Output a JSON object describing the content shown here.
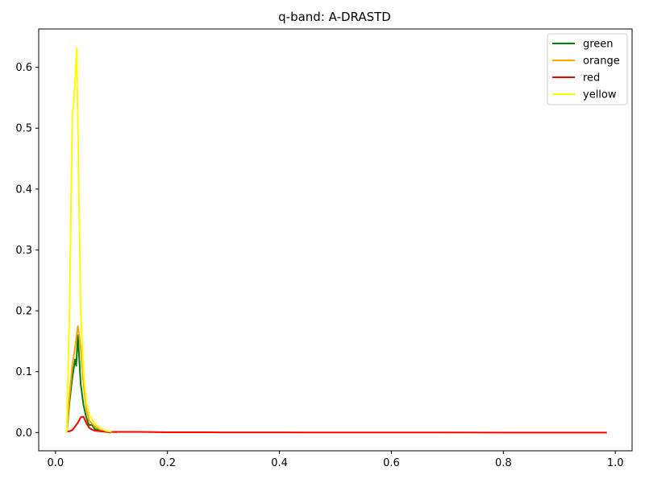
{
  "chart_data": {
    "type": "line",
    "title": "q-band: A-DRASTD",
    "xlabel": "",
    "ylabel": "",
    "xlim": [
      -0.03,
      1.03
    ],
    "ylim": [
      -0.03,
      0.663
    ],
    "xticks": [
      0.0,
      0.2,
      0.4,
      0.6,
      0.8,
      1.0
    ],
    "xtick_labels": [
      "0.0",
      "0.2",
      "0.4",
      "0.6",
      "0.8",
      "1.0"
    ],
    "yticks": [
      0.0,
      0.1,
      0.2,
      0.3,
      0.4,
      0.5,
      0.6
    ],
    "ytick_labels": [
      "0.0",
      "0.1",
      "0.2",
      "0.3",
      "0.4",
      "0.5",
      "0.6"
    ],
    "legend_position": "top-right",
    "grid": false,
    "series": [
      {
        "name": "green",
        "color": "#008000",
        "x": [
          0.02,
          0.025,
          0.03,
          0.035,
          0.037,
          0.04,
          0.045,
          0.05,
          0.055,
          0.06,
          0.065,
          0.07,
          0.08,
          0.09,
          0.1
        ],
        "y": [
          0.0,
          0.05,
          0.09,
          0.12,
          0.11,
          0.16,
          0.08,
          0.045,
          0.025,
          0.012,
          0.013,
          0.006,
          0.003,
          0.001,
          0.0
        ]
      },
      {
        "name": "orange",
        "color": "#ffa500",
        "x": [
          0.02,
          0.025,
          0.03,
          0.035,
          0.04,
          0.045,
          0.05,
          0.055,
          0.06,
          0.07,
          0.08,
          0.09,
          0.1,
          0.11
        ],
        "y": [
          0.0,
          0.06,
          0.11,
          0.14,
          0.175,
          0.14,
          0.08,
          0.04,
          0.02,
          0.01,
          0.005,
          0.002,
          0.001,
          0.0
        ]
      },
      {
        "name": "red",
        "color": "#ff0000",
        "x": [
          0.02,
          0.025,
          0.03,
          0.035,
          0.04,
          0.045,
          0.05,
          0.055,
          0.06,
          0.065,
          0.07,
          0.08,
          0.1,
          0.15,
          0.2,
          0.3,
          0.4,
          0.5,
          0.6,
          0.7,
          0.8,
          0.9,
          0.985
        ],
        "y": [
          0.002,
          0.002,
          0.004,
          0.01,
          0.016,
          0.025,
          0.026,
          0.016,
          0.008,
          0.005,
          0.003,
          0.002,
          0.001,
          0.001,
          0.0005,
          0.0003,
          0.0002,
          0.0001,
          0.0001,
          0.0001,
          0.0,
          0.0,
          0.0
        ]
      },
      {
        "name": "yellow",
        "color": "#ffff00",
        "x": [
          0.02,
          0.025,
          0.03,
          0.033,
          0.035,
          0.038,
          0.04,
          0.045,
          0.05,
          0.055,
          0.06,
          0.07,
          0.08,
          0.09,
          0.1
        ],
        "y": [
          0.0,
          0.2,
          0.52,
          0.55,
          0.58,
          0.632,
          0.5,
          0.2,
          0.1,
          0.05,
          0.03,
          0.015,
          0.007,
          0.003,
          0.001
        ]
      }
    ]
  }
}
